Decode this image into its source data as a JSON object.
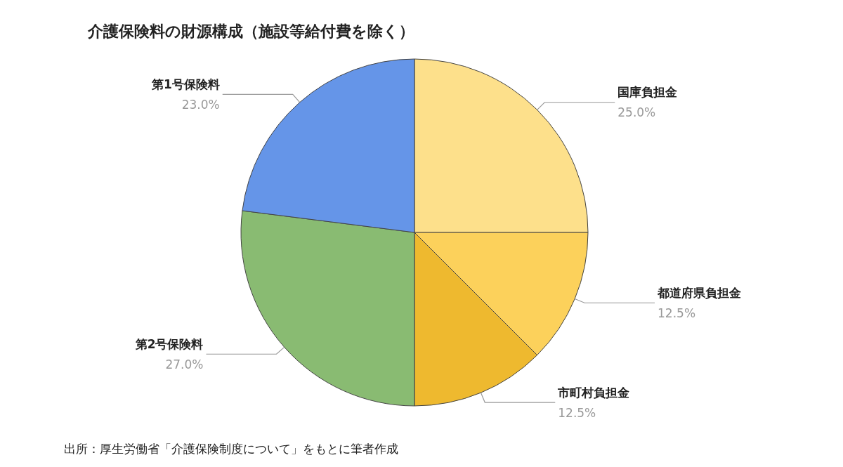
{
  "chart_data": {
    "type": "pie",
    "title": "介護保険料の財源構成（施設等給付費を除く）",
    "categories": [
      "国庫負担金",
      "都道府県負担金",
      "市町村負担金",
      "第2号保険料",
      "第1号保険料"
    ],
    "values": [
      25,
      12.5,
      12.5,
      27,
      23
    ],
    "colors": [
      "#fde08b",
      "#fcd15b",
      "#eeb92f",
      "#89bb72",
      "#6595e8"
    ],
    "value_labels": [
      "25.0%",
      "12.5%",
      "12.5%",
      "27.0%",
      "23.0%"
    ],
    "annotations": [
      "出所：厚生労働省「介護保険制度について」をもとに筆者作成"
    ],
    "legend": false
  }
}
